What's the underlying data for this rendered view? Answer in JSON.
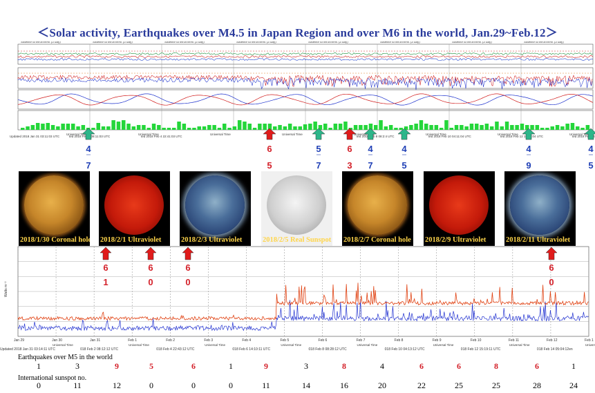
{
  "title": "＜Solar activity, Earthquakes over M4.5 in Japan Region and over M6 in the world, Jan.29~Feb.12＞",
  "top_panel": {
    "panel_title": "Satellite Environment (3 day)",
    "updated_labels": [
      "Updated 2018 Jan 31 03:11:03 UTC",
      "ted 2018 Feb 2 08:11:03 UTC",
      "ted 2018 Feb 4 22:41:03 UTC",
      "",
      "",
      "ted 2018 Feb 8 08:2:4 UTC",
      "ted 2018 Feb 10 04:11:04 UTC",
      "ted 2018 Feb 12 15:19:04 UTC",
      "ted 2018 Feb 14 05:03:2 UTC"
    ],
    "axis_word": "Universal Time",
    "japan_arrows": [
      {
        "top": "4",
        "bottom": "7"
      },
      {
        "top": "5",
        "bottom": "7"
      },
      {
        "top": "4",
        "bottom": "7"
      },
      {
        "top": "4",
        "bottom": "5"
      },
      {
        "top": "4",
        "bottom": "9"
      },
      {
        "top": "4",
        "bottom": "5"
      }
    ],
    "world_arrows": [
      {
        "top": "6",
        "bottom": "5"
      },
      {
        "top": "6",
        "bottom": "3"
      }
    ],
    "colors": {
      "japan_arrow": "#2db68a",
      "world_arrow": "#e01b1b",
      "japan_text": "#1f3fb5",
      "world_text": "#d4212a"
    }
  },
  "sun_images": [
    {
      "caption": "2018/1/30 Coronal hole",
      "kind": "coronal"
    },
    {
      "caption": "2018/2/1 Ultraviolet",
      "kind": "red"
    },
    {
      "caption": "2018/2/3 Ultraviolet",
      "kind": "blue"
    },
    {
      "caption": "2018/2/5 Real Sunspot",
      "kind": "gray"
    },
    {
      "caption": "2018/2/7 Coronal hole",
      "kind": "coronal"
    },
    {
      "caption": "2018/2/9 Ultraviolet",
      "kind": "red"
    },
    {
      "caption": "2018/2/11 Ultraviolet",
      "kind": "blue"
    }
  ],
  "bottom_panel": {
    "ylabel": "Watts m⁻²",
    "day_labels": [
      "Jan 29",
      "Jan 30",
      "Jan 31",
      "Feb 1",
      "Feb 2",
      "Feb 3",
      "Feb 4",
      "Feb 5",
      "Feb 6",
      "Feb 7",
      "Feb 8",
      "Feb 9",
      "Feb 10",
      "Feb 11",
      "Feb 12",
      "Feb 1"
    ],
    "universal_time": "Universal Time",
    "updated_labels": [
      "Updated 2018 Jan 31 03:14:11 UTC",
      "018 Feb 2 08:12:12 UTC",
      "018 Feb 4 22:43:12 UTC",
      "018 Feb 6 14:10:11 UTC",
      "018 Feb 8 08:28:12 UTC",
      "018 Feb 10 04:13:12 UTC",
      "018 Feb 12 15:19:11 UTC",
      "018 Feb 14 05:04:12en"
    ],
    "world_arrows": [
      {
        "top": "6",
        "bottom": "1"
      },
      {
        "top": "6",
        "bottom": "0"
      },
      {
        "top": "6",
        "bottom": "0"
      },
      {
        "top": "6",
        "bottom": "0"
      }
    ]
  },
  "footer": {
    "eq_caption": "Earthquakes over M5 in the world",
    "ss_caption": "International sunspot no.",
    "earthquakes": [
      {
        "v": "1",
        "red": false
      },
      {
        "v": "3",
        "red": false
      },
      {
        "v": "9",
        "red": true
      },
      {
        "v": "5",
        "red": true
      },
      {
        "v": "6",
        "red": true
      },
      {
        "v": "1",
        "red": false
      },
      {
        "v": "9",
        "red": true
      },
      {
        "v": "3",
        "red": false
      },
      {
        "v": "8",
        "red": true
      },
      {
        "v": "4",
        "red": false
      },
      {
        "v": "6",
        "red": true
      },
      {
        "v": "6",
        "red": true
      },
      {
        "v": "8",
        "red": true
      },
      {
        "v": "6",
        "red": true
      },
      {
        "v": "1",
        "red": false
      }
    ],
    "sunspots": [
      "0",
      "11",
      "12",
      "0",
      "0",
      "0",
      "11",
      "14",
      "16",
      "20",
      "22",
      "25",
      "25",
      "28",
      "24"
    ]
  },
  "chart_data": {
    "type": "line",
    "categories": [
      "Jan 29",
      "Jan 30",
      "Jan 31",
      "Feb 1",
      "Feb 2",
      "Feb 3",
      "Feb 4",
      "Feb 5",
      "Feb 6",
      "Feb 7",
      "Feb 8",
      "Feb 9",
      "Feb 10",
      "Feb 11",
      "Feb 12"
    ],
    "series": [
      {
        "name": "Earthquakes over M5 in the world",
        "values": [
          1,
          3,
          9,
          5,
          6,
          1,
          9,
          3,
          8,
          4,
          6,
          6,
          8,
          6,
          1
        ]
      },
      {
        "name": "International sunspot no.",
        "values": [
          0,
          11,
          12,
          0,
          0,
          0,
          11,
          14,
          16,
          20,
          22,
          25,
          25,
          28,
          24
        ]
      }
    ],
    "title": "＜Solar activity, Earthquakes over M4.5 in Japan Region and over M6 in the world, Jan.29~Feb.12＞",
    "ylabel": "Watts m⁻²",
    "yscale": "log"
  }
}
